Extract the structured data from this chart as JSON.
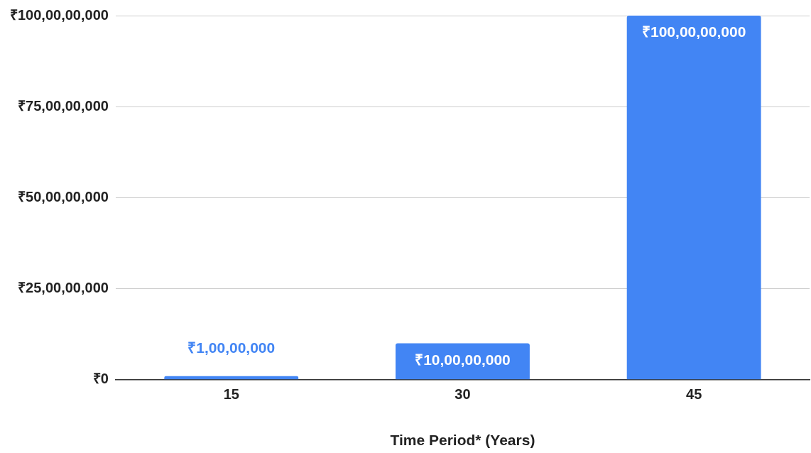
{
  "chart_data": {
    "type": "bar",
    "xlabel": "Time Period* (Years)",
    "categories": [
      "15",
      "30",
      "45"
    ],
    "values": [
      10000000,
      100000000,
      1000000000
    ],
    "value_labels": [
      "₹1,00,00,000",
      "₹10,00,00,000",
      "₹100,00,00,000"
    ],
    "color": "#4285f4",
    "ylim": [
      0,
      1000000000
    ],
    "yticks": [
      {
        "value": 0,
        "label": "₹0"
      },
      {
        "value": 250000000,
        "label": "₹25,00,00,000"
      },
      {
        "value": 500000000,
        "label": "₹50,00,00,000"
      },
      {
        "value": 750000000,
        "label": "₹75,00,00,000"
      },
      {
        "value": 1000000000,
        "label": "₹100,00,00,000"
      }
    ],
    "grid": "y",
    "legend": false
  }
}
